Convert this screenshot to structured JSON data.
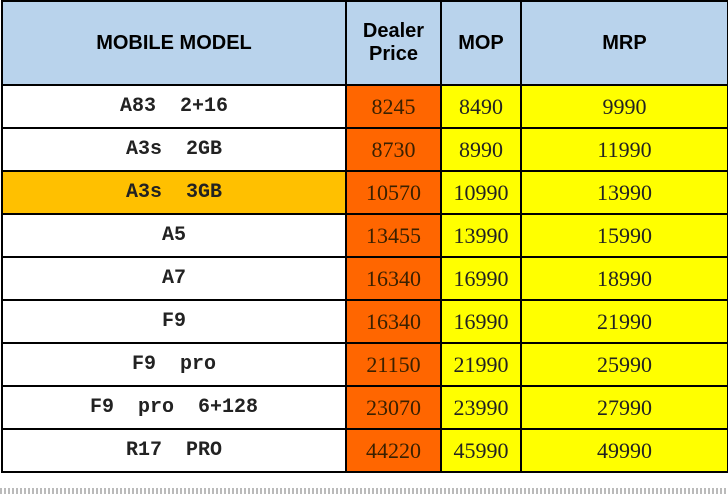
{
  "table": {
    "header": [
      "MOBILE MODEL",
      "Dealer Price",
      "MOP",
      "MRP"
    ],
    "rows": [
      [
        "A83  2+16",
        8245,
        8490,
        9990
      ],
      [
        "A3s  2GB",
        8730,
        8990,
        11990
      ],
      [
        "A3s  3GB",
        10570,
        10990,
        13990
      ],
      [
        "A5",
        13455,
        13990,
        15990
      ],
      [
        "A7",
        16340,
        16990,
        18990
      ],
      [
        "F9",
        16340,
        16990,
        21990
      ],
      [
        "F9  pro",
        21150,
        21990,
        25990
      ],
      [
        "F9  pro  6+128",
        23070,
        23990,
        27990
      ],
      [
        "R17  PRO",
        44220,
        45990,
        49990
      ]
    ],
    "highlight_row": 2
  }
}
